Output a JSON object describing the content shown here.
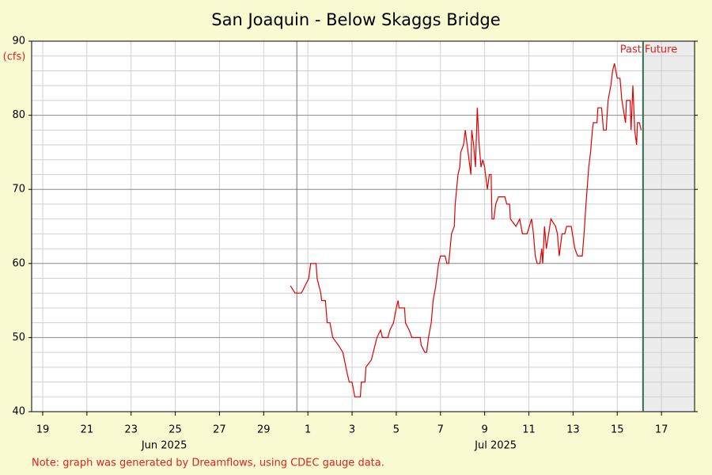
{
  "chart_data": {
    "type": "line",
    "title": "San Joaquin - Below Skaggs Bridge",
    "y_label": "(cfs)",
    "note": "Note: graph was generated by Dreamflows, using CDEC gauge data.",
    "past_label": "Past",
    "future_label": "Future",
    "now": "2025-07-16T16:00",
    "color": "#e00000",
    "xlim": [
      "2025-06-19T00:00",
      "2025-07-19T00:00"
    ],
    "xticks": [
      {
        "value": "2025-06-19T12:00",
        "label": "19"
      },
      {
        "value": "2025-06-21T12:00",
        "label": "21"
      },
      {
        "value": "2025-06-23T12:00",
        "label": "23"
      },
      {
        "value": "2025-06-25T12:00",
        "label": "25"
      },
      {
        "value": "2025-06-27T12:00",
        "label": "27"
      },
      {
        "value": "2025-06-29T12:00",
        "label": "29"
      },
      {
        "value": "2025-07-01T12:00",
        "label": "1"
      },
      {
        "value": "2025-07-03T12:00",
        "label": "3"
      },
      {
        "value": "2025-07-05T12:00",
        "label": "5"
      },
      {
        "value": "2025-07-07T12:00",
        "label": "7"
      },
      {
        "value": "2025-07-09T12:00",
        "label": "9"
      },
      {
        "value": "2025-07-11T12:00",
        "label": "11"
      },
      {
        "value": "2025-07-13T12:00",
        "label": "13"
      },
      {
        "value": "2025-07-15T12:00",
        "label": "15"
      },
      {
        "value": "2025-07-17T12:00",
        "label": "17"
      }
    ],
    "month_labels": [
      {
        "value": "2025-06-25T00:00",
        "label": "Jun 2025"
      },
      {
        "value": "2025-07-10T00:00",
        "label": "Jul 2025"
      }
    ],
    "month_start_lines": [
      "2025-07-01T00:00"
    ],
    "ylim": [
      40,
      90
    ],
    "yticks": [
      40,
      50,
      60,
      70,
      80,
      90
    ],
    "yticks_minor": [
      42,
      44,
      46,
      48,
      52,
      54,
      56,
      58,
      62,
      64,
      66,
      68,
      72,
      74,
      76,
      78,
      82,
      84,
      86,
      88
    ],
    "grid": true,
    "x": [
      "2025-06-30T17:00",
      "2025-06-30T22:00",
      "2025-07-01T05:00",
      "2025-07-01T09:00",
      "2025-07-01T13:00",
      "2025-07-01T15:00",
      "2025-07-01T21:00",
      "2025-07-01T22:00",
      "2025-07-02T02:00",
      "2025-07-02T03:00",
      "2025-07-02T07:00",
      "2025-07-02T09:00",
      "2025-07-02T12:00",
      "2025-07-02T15:00",
      "2025-07-02T21:00",
      "2025-07-03T02:00",
      "2025-07-03T07:00",
      "2025-07-03T09:00",
      "2025-07-03T12:00",
      "2025-07-03T15:00",
      "2025-07-03T21:00",
      "2025-07-03T22:00",
      "2025-07-04T02:00",
      "2025-07-04T03:00",
      "2025-07-04T09:00",
      "2025-07-04T13:00",
      "2025-07-04T15:00",
      "2025-07-04T19:00",
      "2025-07-04T21:00",
      "2025-07-05T03:00",
      "2025-07-05T05:00",
      "2025-07-05T09:00",
      "2025-07-05T12:00",
      "2025-07-05T14:00",
      "2025-07-05T15:00",
      "2025-07-05T21:00",
      "2025-07-05T22:00",
      "2025-07-06T02:00",
      "2025-07-06T05:00",
      "2025-07-06T14:00",
      "2025-07-06T15:00",
      "2025-07-06T19:00",
      "2025-07-06T21:00",
      "2025-07-06T23:00",
      "2025-07-07T02:00",
      "2025-07-07T04:00",
      "2025-07-07T07:00",
      "2025-07-07T10:00",
      "2025-07-07T12:00",
      "2025-07-07T17:00",
      "2025-07-07T19:00",
      "2025-07-07T21:00",
      "2025-07-08T00:00",
      "2025-07-08T03:00",
      "2025-07-08T04:00",
      "2025-07-08T07:00",
      "2025-07-08T09:00",
      "2025-07-08T10:00",
      "2025-07-08T13:00",
      "2025-07-08T15:00",
      "2025-07-08T17:00",
      "2025-07-08T21:00",
      "2025-07-08T22:00",
      "2025-07-09T00:00",
      "2025-07-09T02:00",
      "2025-07-09T04:00",
      "2025-07-09T06:00",
      "2025-07-09T08:00",
      "2025-07-09T10:00",
      "2025-07-09T12:00",
      "2025-07-09T15:00",
      "2025-07-09T17:00",
      "2025-07-09T19:00",
      "2025-07-09T20:00",
      "2025-07-09T22:00",
      "2025-07-10T00:00",
      "2025-07-10T03:00",
      "2025-07-10T10:00",
      "2025-07-10T12:00",
      "2025-07-10T15:00",
      "2025-07-10T16:00",
      "2025-07-10T22:00",
      "2025-07-11T02:00",
      "2025-07-11T05:00",
      "2025-07-11T10:00",
      "2025-07-11T15:00",
      "2025-07-11T17:00",
      "2025-07-11T19:00",
      "2025-07-11T21:00",
      "2025-07-12T00:00",
      "2025-07-12T02:00",
      "2025-07-12T03:00",
      "2025-07-12T05:00",
      "2025-07-12T07:00",
      "2025-07-12T12:00",
      "2025-07-12T17:00",
      "2025-07-12T19:00",
      "2025-07-12T21:00",
      "2025-07-13T00:00",
      "2025-07-13T03:00",
      "2025-07-13T05:00",
      "2025-07-13T10:00",
      "2025-07-13T14:00",
      "2025-07-13T17:00",
      "2025-07-13T22:00",
      "2025-07-14T00:00",
      "2025-07-14T02:00",
      "2025-07-14T05:00",
      "2025-07-14T07:00",
      "2025-07-14T09:00",
      "2025-07-14T10:00",
      "2025-07-14T14:00",
      "2025-07-14T15:00",
      "2025-07-14T19:00",
      "2025-07-14T21:00",
      "2025-07-15T00:00",
      "2025-07-15T02:00",
      "2025-07-15T05:00",
      "2025-07-15T07:00",
      "2025-07-15T09:00",
      "2025-07-15T12:00",
      "2025-07-15T15:00",
      "2025-07-15T17:00",
      "2025-07-15T21:00",
      "2025-07-15T22:00",
      "2025-07-16T02:00",
      "2025-07-16T03:00",
      "2025-07-16T05:00",
      "2025-07-16T07:00",
      "2025-07-16T09:00",
      "2025-07-16T10:00",
      "2025-07-16T12:00",
      "2025-07-16T14:00"
    ],
    "values": [
      57,
      56,
      56,
      57,
      58,
      60,
      60,
      58,
      56,
      55,
      55,
      52,
      52,
      50,
      49,
      48,
      45,
      44,
      44,
      42,
      42,
      44,
      44,
      46,
      47,
      49,
      50,
      51,
      50,
      50,
      51,
      52,
      54,
      55,
      54,
      54,
      52,
      51,
      50,
      50,
      49,
      48,
      48,
      50,
      52,
      55,
      57,
      60,
      61,
      61,
      60,
      60,
      64,
      65,
      68,
      72,
      73,
      75,
      76,
      78,
      76,
      72,
      78,
      76,
      73,
      81,
      76,
      73,
      74,
      73,
      70,
      72,
      72,
      66,
      66,
      68,
      69,
      69,
      68,
      68,
      66,
      65,
      66,
      64,
      64,
      66,
      64,
      61,
      60,
      60,
      62,
      60,
      65,
      62,
      66,
      65,
      64,
      61,
      64,
      64,
      65,
      65,
      62,
      61,
      61,
      64,
      68,
      73,
      75,
      78,
      79,
      79,
      81,
      81,
      78,
      78,
      82,
      84,
      86,
      87,
      85,
      85,
      82,
      79,
      82,
      82,
      78,
      84,
      78,
      76,
      79,
      79,
      78
    ]
  }
}
